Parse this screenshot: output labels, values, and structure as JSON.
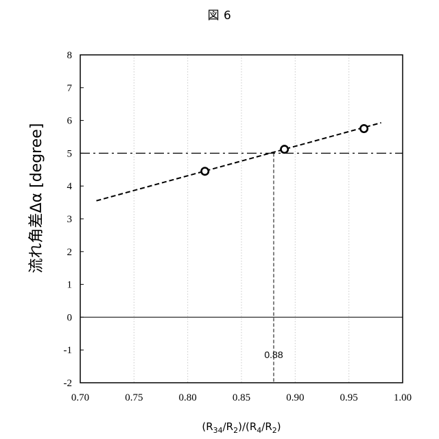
{
  "figure_label": "図 6",
  "chart_data": {
    "type": "scatter",
    "xlabel": "(R34/R2)/(R4/R2)",
    "xlabel_parts": [
      "(R",
      "34",
      "/R",
      "2",
      ")/(R",
      "4",
      "/R",
      "2",
      ")"
    ],
    "ylabel": "流れ角差Δα [degree]",
    "xlim": [
      0.7,
      1.0
    ],
    "ylim": [
      -2,
      8
    ],
    "x_ticks": [
      "0.70",
      "0.75",
      "0.80",
      "0.85",
      "0.90",
      "0.95",
      "1.00"
    ],
    "y_ticks": [
      "-2",
      "-1",
      "0",
      "1",
      "2",
      "3",
      "4",
      "5",
      "6",
      "7",
      "8"
    ],
    "grid": "vertical dotted",
    "points": [
      {
        "x": 0.816,
        "y": 4.45
      },
      {
        "x": 0.89,
        "y": 5.12
      },
      {
        "x": 0.964,
        "y": 5.75
      }
    ],
    "trend_line": {
      "style": "dashed",
      "x": [
        0.715,
        0.98
      ],
      "y": [
        3.55,
        5.93
      ]
    },
    "reference_line": {
      "style": "dash-dot",
      "y": 5
    },
    "marker_line": {
      "style": "dashed",
      "x": 0.88,
      "y_top": 5,
      "label": "0.88"
    },
    "zero_line": {
      "y": 0
    }
  }
}
